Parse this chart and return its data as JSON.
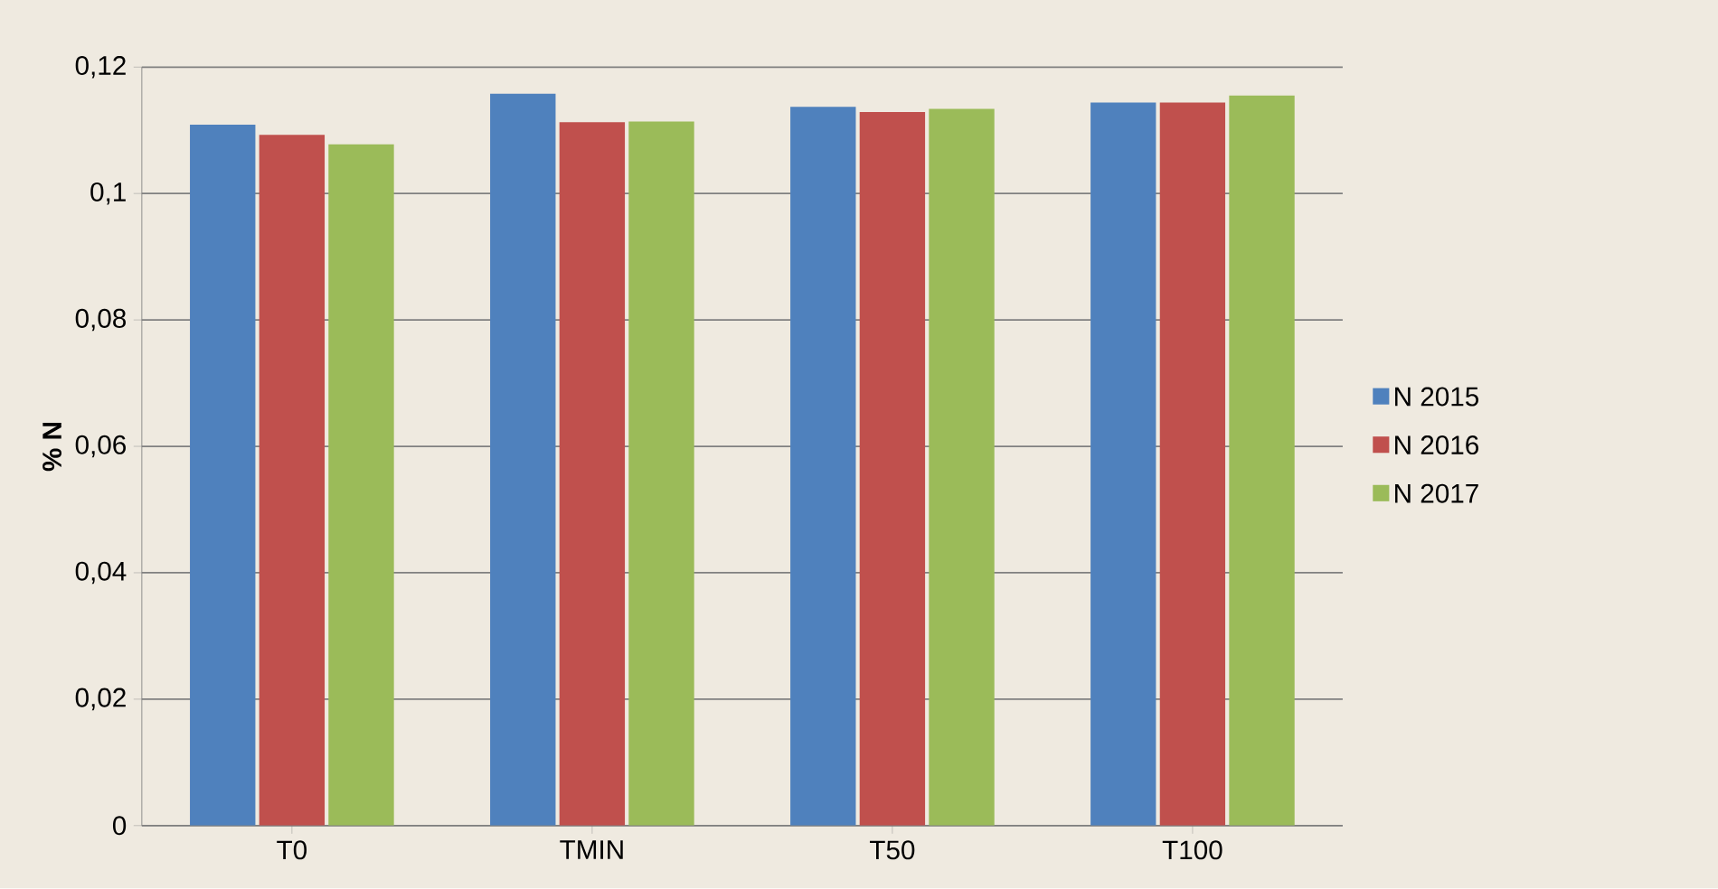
{
  "chart_data": {
    "type": "bar",
    "ylabel": "**% N**",
    "categories": [
      "T0",
      "TMIN",
      "T50",
      "T100"
    ],
    "series": [
      {
        "name": "N 2015",
        "color": "#4f81bd",
        "values": [
          0.1109,
          0.1158,
          0.1137,
          0.1144
        ]
      },
      {
        "name": "N 2016",
        "color": "#c0504d",
        "values": [
          0.1093,
          0.1113,
          0.1129,
          0.1144
        ]
      },
      {
        "name": "N 2017",
        "color": "#9bbb59",
        "values": [
          0.1078,
          0.1114,
          0.1134,
          0.1155
        ]
      }
    ],
    "ylim": [
      0,
      0.12
    ],
    "yticks": [
      0,
      {
        "value": 0.02,
        "label": "0,02"
      },
      {
        "value": 0.04,
        "label": "0,04"
      },
      {
        "value": 0.06,
        "label": "0,06"
      },
      {
        "value": 0.08,
        "label": "0,08"
      },
      {
        "value": 0.1,
        "label": "0,1"
      },
      {
        "value": 0.12,
        "label": "0,12"
      }
    ],
    "grid": "y",
    "legend": "right"
  }
}
